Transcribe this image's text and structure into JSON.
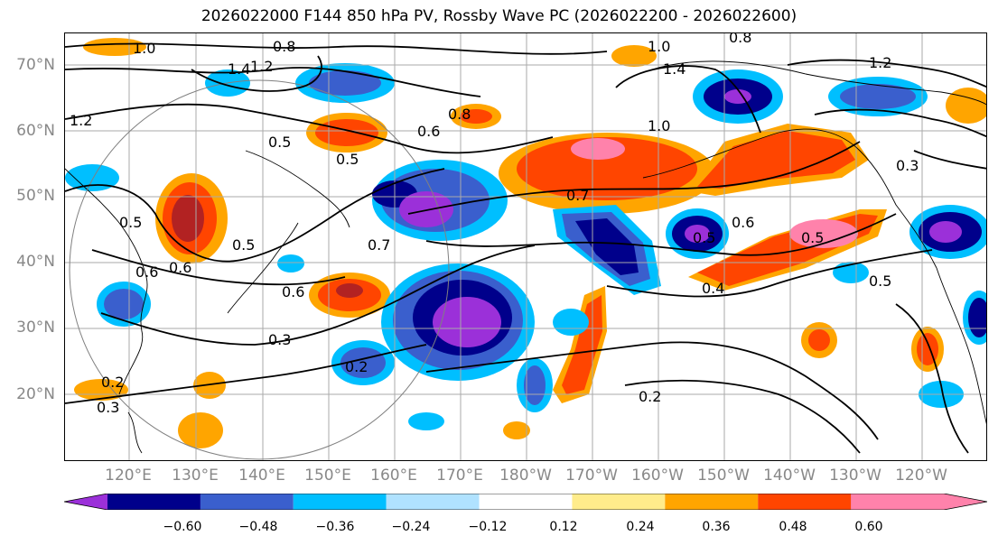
{
  "title": "2026022000 F144 850 hPa PV, Rossby Wave PC (2026022200 - 2026022600)",
  "map": {
    "type": "filled_contour_map",
    "field": "850 hPa PV, Rossby Wave PC",
    "lat_labels": [
      "70°N",
      "60°N",
      "50°N",
      "40°N",
      "30°N",
      "20°N"
    ],
    "lon_labels": [
      "120°E",
      "130°E",
      "140°E",
      "150°E",
      "160°E",
      "170°E",
      "180°W",
      "170°W",
      "160°W",
      "150°W",
      "140°W",
      "130°W",
      "120°W"
    ],
    "contour_labels": [
      {
        "text": "1.0"
      },
      {
        "text": "0.8"
      },
      {
        "text": "1.4"
      },
      {
        "text": "1.2"
      },
      {
        "text": "1.2"
      },
      {
        "text": "0.8"
      },
      {
        "text": "0.5"
      },
      {
        "text": "0.5"
      },
      {
        "text": "0.6"
      },
      {
        "text": "0.7"
      },
      {
        "text": "0.7"
      },
      {
        "text": "0.5"
      },
      {
        "text": "0.6"
      },
      {
        "text": "0.6"
      },
      {
        "text": "0.3"
      },
      {
        "text": "0.2"
      },
      {
        "text": "0.3"
      },
      {
        "text": "0.2"
      },
      {
        "text": "0.5"
      },
      {
        "text": "0.5"
      },
      {
        "text": "0.6"
      },
      {
        "text": "0.4"
      },
      {
        "text": "0.5"
      },
      {
        "text": "0.3"
      },
      {
        "text": "1.0"
      },
      {
        "text": "1.4"
      },
      {
        "text": "1.0"
      },
      {
        "text": "0.8"
      },
      {
        "text": "1.2"
      },
      {
        "text": "0.2"
      },
      {
        "text": "0.5"
      },
      {
        "text": "0.6"
      }
    ]
  },
  "colorbar": {
    "colors": [
      "#9b30d9",
      "#00008b",
      "#3a5fcd",
      "#00bfff",
      "#b0e2ff",
      "#ffffff",
      "#ffec8b",
      "#ffa500",
      "#ff4500",
      "#b22222",
      "#ff82ab"
    ],
    "ticks": [
      "−0.60",
      "−0.48",
      "−0.36",
      "−0.24",
      "−0.12",
      "0.12",
      "0.24",
      "0.36",
      "0.48",
      "0.60"
    ]
  }
}
